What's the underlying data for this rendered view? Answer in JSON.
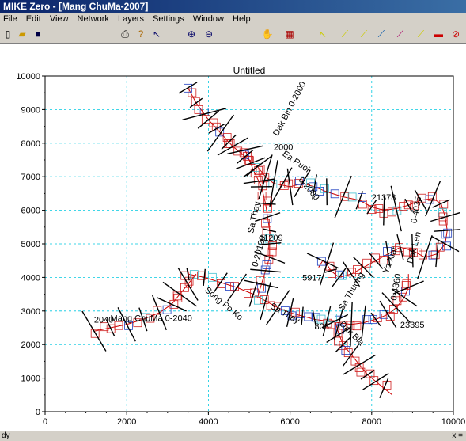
{
  "window": {
    "title": "MIKE Zero - [Mang ChuMa-2007]"
  },
  "menu": [
    "File",
    "Edit",
    "View",
    "Network",
    "Layers",
    "Settings",
    "Window",
    "Help"
  ],
  "toolbar": {
    "icons": [
      "new-icon",
      "open-icon",
      "save-icon",
      "print-icon",
      "help-icon",
      "context-help-icon",
      "zoom-in-icon",
      "zoom-out-icon",
      "pan-icon",
      "grid-icon",
      "select-icon",
      "add-point-icon",
      "edit-branch-icon",
      "tool-icon",
      "merge-icon",
      "connect-icon",
      "car-icon",
      "cross-section-icon"
    ]
  },
  "plot": {
    "title": "Untitled"
  },
  "chart_data": {
    "type": "scatter",
    "title": "Untitled",
    "xlim": [
      0,
      10000
    ],
    "ylim": [
      0,
      10000
    ],
    "xticks": [
      "0",
      "2000",
      "4000",
      "6000",
      "8000",
      "10000"
    ],
    "yticks": [
      "0",
      "1000",
      "2000",
      "3000",
      "4000",
      "5000",
      "6000",
      "7000",
      "8000",
      "9000",
      "10000"
    ],
    "grid": true,
    "labels": [
      {
        "text": "Dak Bin  0-2000",
        "x": 5700,
        "y": 8200,
        "angle": -62
      },
      {
        "text": "Ea Ruoi",
        "x": 5800,
        "y": 7650,
        "angle": 35
      },
      {
        "text": "0-2000",
        "x": 6200,
        "y": 6900,
        "angle": 50
      },
      {
        "text": "2000",
        "x": 5600,
        "y": 7800,
        "angle": 0
      },
      {
        "text": "21378",
        "x": 8000,
        "y": 6300,
        "angle": 0
      },
      {
        "text": "0-4035",
        "x": 9100,
        "y": 5600,
        "angle": -80
      },
      {
        "text": "Dak Len",
        "x": 9000,
        "y": 4400,
        "angle": -75
      },
      {
        "text": "Sa Thay",
        "x": 5100,
        "y": 5300,
        "angle": -78
      },
      {
        "text": "0-20120",
        "x": 5200,
        "y": 4300,
        "angle": -75
      },
      {
        "text": "11209",
        "x": 5250,
        "y": 5100,
        "angle": 0
      },
      {
        "text": "5917",
        "x": 6300,
        "y": 3900,
        "angle": 0
      },
      {
        "text": "Song Po Ko",
        "x": 3900,
        "y": 3600,
        "angle": 40
      },
      {
        "text": "Sa Thay",
        "x": 5500,
        "y": 3100,
        "angle": 30
      },
      {
        "text": "2040",
        "x": 1200,
        "y": 2650,
        "angle": 0
      },
      {
        "text": "Mang ChuMa 0-2040",
        "x": 1600,
        "y": 2700,
        "angle": 0
      },
      {
        "text": "803",
        "x": 6600,
        "y": 2450,
        "angle": 0
      },
      {
        "text": "Dak Bla",
        "x": 7200,
        "y": 2600,
        "angle": 45
      },
      {
        "text": "Sa Thuong",
        "x": 7300,
        "y": 3000,
        "angle": -60
      },
      {
        "text": "0-4360",
        "x": 8600,
        "y": 3300,
        "angle": -80
      },
      {
        "text": "Ya Xiar",
        "x": 8400,
        "y": 4100,
        "angle": -70
      },
      {
        "text": "23395",
        "x": 8700,
        "y": 2500,
        "angle": 0
      }
    ],
    "centerlines": [
      {
        "name": "dak-bin",
        "x": [
          3500,
          3700,
          4000,
          4300,
          4600,
          4900,
          5200,
          5400,
          5600,
          5800,
          6000,
          6300,
          6600,
          6900,
          7300,
          7700,
          8000,
          8300,
          8600,
          8900,
          9200,
          9500,
          9700
        ],
        "y": [
          9650,
          9200,
          8700,
          8300,
          7900,
          7600,
          7300,
          7000,
          6800,
          6750,
          6700,
          6800,
          6700,
          6550,
          6400,
          6300,
          6100,
          6000,
          6050,
          6150,
          6300,
          6350,
          6200
        ]
      },
      {
        "name": "upper-branch",
        "x": [
          9700,
          9800,
          9850,
          9800,
          9600,
          9300,
          9000,
          8700,
          8400,
          8100,
          7800,
          7500,
          7200,
          7000,
          6900,
          6800,
          6700
        ],
        "y": [
          6200,
          5800,
          5400,
          5000,
          4700,
          4600,
          4800,
          4900,
          4700,
          4500,
          4300,
          4100,
          4000,
          4200,
          4400,
          4500,
          4300
        ]
      },
      {
        "name": "sa-thay",
        "x": [
          4900,
          5100,
          5300,
          5400,
          5450,
          5500,
          5500,
          5500,
          5400,
          5300,
          5200
        ],
        "y": [
          7800,
          7200,
          6700,
          6200,
          5800,
          5400,
          5000,
          4600,
          4200,
          3800,
          3400
        ]
      },
      {
        "name": "po-ko",
        "x": [
          3500,
          3900,
          4300,
          4700,
          5100,
          5400,
          5700,
          6000,
          6300,
          6600,
          6900,
          7200,
          7500,
          7800,
          8100,
          8400,
          8600,
          8800,
          8900,
          8900
        ],
        "y": [
          4100,
          4000,
          3850,
          3700,
          3500,
          3300,
          3100,
          2950,
          2850,
          2750,
          2700,
          2650,
          2600,
          2650,
          2750,
          2900,
          3100,
          3400,
          3700,
          4100
        ]
      },
      {
        "name": "mang-chuma",
        "x": [
          1200,
          1600,
          2000,
          2400,
          2800,
          3100,
          3300,
          3500,
          3700
        ],
        "y": [
          2400,
          2500,
          2600,
          2750,
          2950,
          3200,
          3500,
          3800,
          4100
        ]
      },
      {
        "name": "south-branch",
        "x": [
          7100,
          7200,
          7300,
          7500,
          7700,
          7900,
          8100,
          8300,
          8500
        ],
        "y": [
          2700,
          2300,
          2000,
          1700,
          1400,
          1100,
          900,
          700,
          500
        ]
      }
    ]
  },
  "status": {
    "left": "dy",
    "right": "x ="
  }
}
